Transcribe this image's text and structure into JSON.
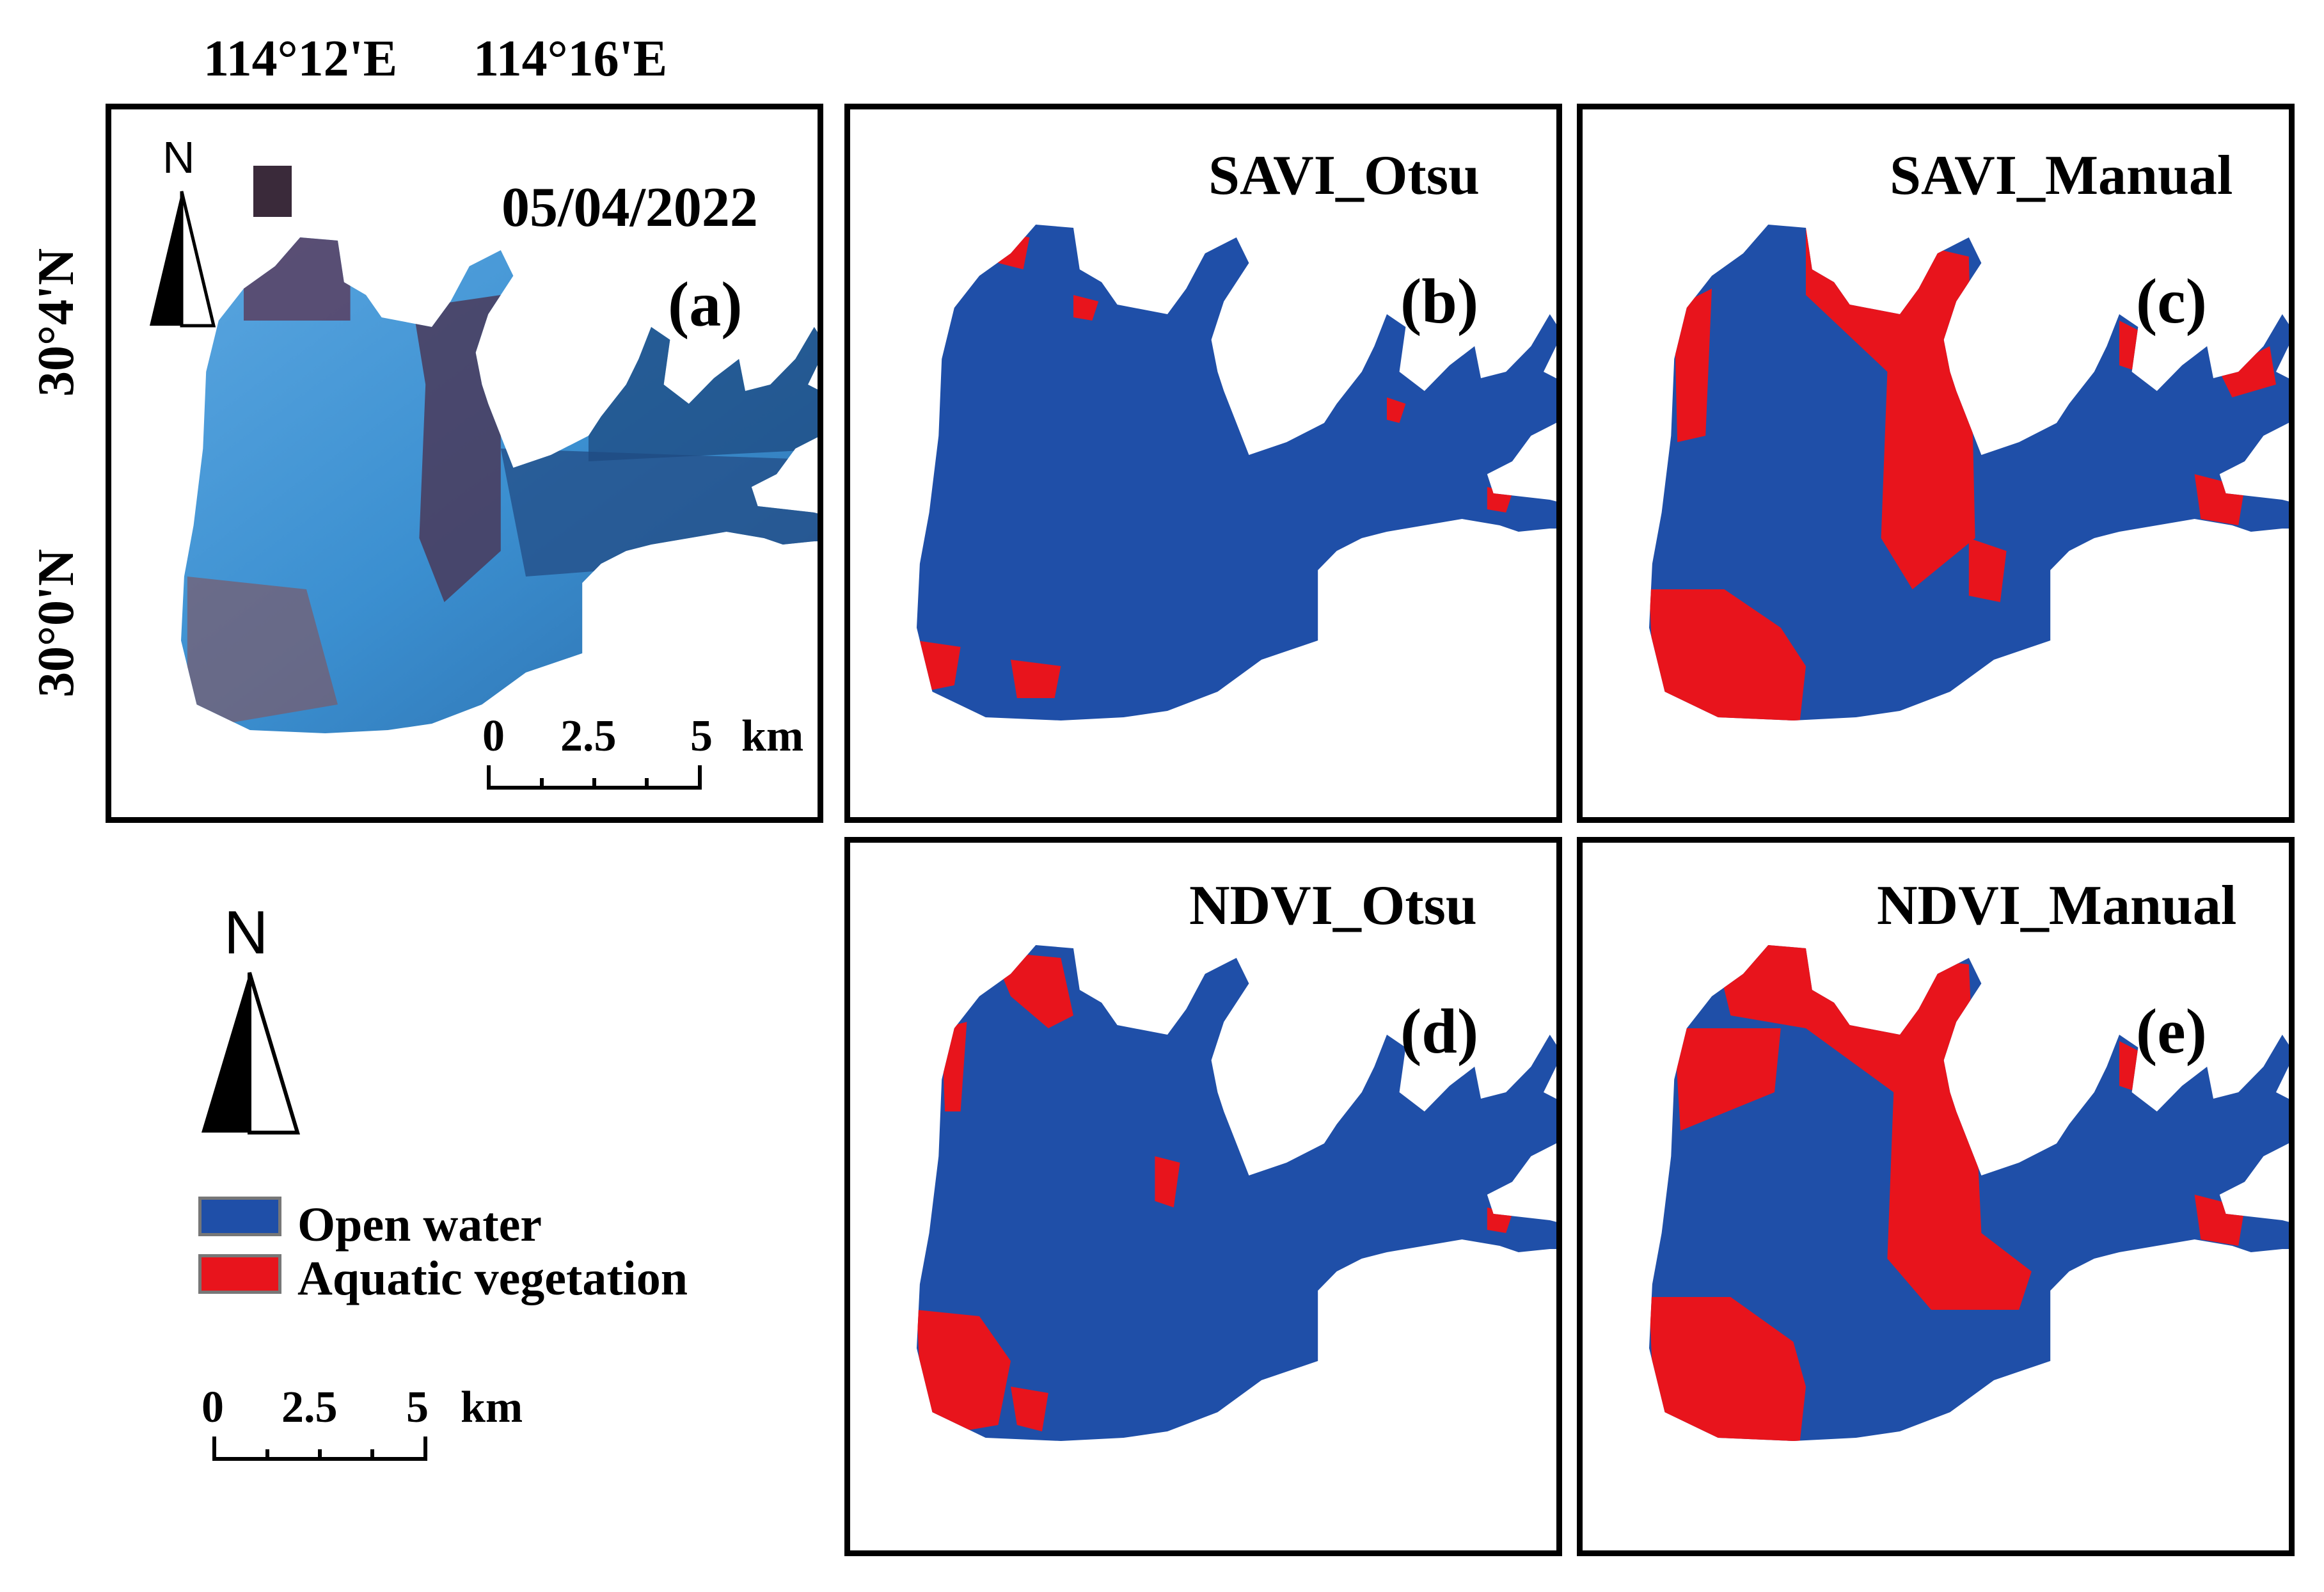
{
  "coords": {
    "lon1": "114°12'E",
    "lon2": "114°16'E",
    "lat1": "30°4'N",
    "lat2": "30°0'N"
  },
  "panels": [
    {
      "id": "a",
      "title": "05/04/2022",
      "letter": "(a)",
      "type": "rgb"
    },
    {
      "id": "b",
      "title": "SAVI_Otsu",
      "letter": "(b)",
      "type": "class",
      "veg_level": "low"
    },
    {
      "id": "c",
      "title": "SAVI_Manual",
      "letter": "(c)",
      "type": "class",
      "veg_level": "high"
    },
    {
      "id": "d",
      "title": "NDVI_Otsu",
      "letter": "(d)",
      "type": "class",
      "veg_level": "medium"
    },
    {
      "id": "e",
      "title": "NDVI_Manual",
      "letter": "(e)",
      "type": "class",
      "veg_level": "very-high"
    }
  ],
  "north": {
    "label": "N"
  },
  "scalebar": {
    "ticks": [
      "0",
      "2.5",
      "5"
    ],
    "unit": "km"
  },
  "legend": {
    "items": [
      {
        "label": "Open water",
        "color": "#1f4fa8"
      },
      {
        "label": "Aquatic vegetation",
        "color": "#e8141c"
      }
    ]
  },
  "colors": {
    "water": "#1f4fa8",
    "vegetation": "#e8141c",
    "rgb_water": "#3b8fd0"
  }
}
